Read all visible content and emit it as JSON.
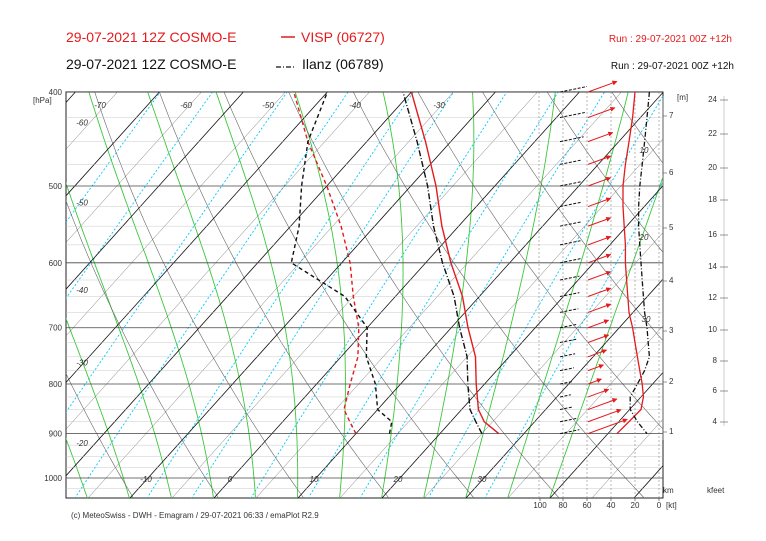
{
  "header": {
    "line1_left": "29-07-2021 12Z COSMO-E",
    "line1_station": "VISP (06727)",
    "line1_run": "Run : 29-07-2021 00Z +12h",
    "line2_left": "29-07-2021 12Z COSMO-E",
    "line2_station": "Ilanz (06789)",
    "line2_run": "Run : 29-07-2021 00Z +12h"
  },
  "footer": {
    "credit": "(c) MeteoSwiss - DWH - Emagram / 29-07-2021  06:33 / emaPlot R2.9"
  },
  "colors": {
    "visp": "#e41a1c",
    "ilanz": "#111111",
    "dry_adiabat": "#333333",
    "moist_adiabat": "#39c839",
    "mixing_ratio": "#00c8ff",
    "grid": "#888888"
  },
  "chart_data": {
    "type": "line",
    "diagram": "emagram",
    "y_axis": {
      "label": "[hPa]",
      "scale": "log-pressure",
      "range": [
        1050,
        400
      ],
      "ticks": [
        "400",
        "500",
        "600",
        "700",
        "800",
        "900",
        "1000"
      ]
    },
    "x_axis": {
      "label": "",
      "temperature_range_C": [
        -80,
        50
      ],
      "bottom_temperature_labels": [
        "-10",
        "0",
        "10",
        "20",
        "30"
      ],
      "upper_temperature_labels": [
        "-60",
        "-50",
        "-40",
        "-30",
        "-20"
      ],
      "upper_temperature_labels_top": [
        "-70",
        "-60",
        "-50",
        "-40",
        "-30"
      ]
    },
    "wind_scale": {
      "label": "[kt]",
      "ticks": [
        "100",
        "80",
        "60",
        "40",
        "20",
        "0"
      ]
    },
    "height_axis_m": {
      "label": "[m]",
      "ticks": [
        "1",
        "2",
        "3",
        "4",
        "5",
        "6",
        "7"
      ]
    },
    "height_axis_kfeet": {
      "label": "kfeet",
      "ticks": [
        "4",
        "6",
        "8",
        "10",
        "12",
        "14",
        "16",
        "18",
        "20",
        "22",
        "24"
      ]
    },
    "km_label": "km",
    "mixing_ratio_labels": [
      "10",
      "20",
      "30"
    ],
    "series": [
      {
        "name": "VISP (06727)",
        "role": "temperature",
        "points_T_p": [
          [
            27,
            900
          ],
          [
            24,
            875
          ],
          [
            22,
            850
          ],
          [
            19,
            800
          ],
          [
            16,
            750
          ],
          [
            12,
            700
          ],
          [
            8,
            650
          ],
          [
            3,
            600
          ],
          [
            -2,
            550
          ],
          [
            -7,
            500
          ],
          [
            -13,
            450
          ],
          [
            -20,
            400
          ]
        ]
      },
      {
        "name": "VISP (06727)",
        "role": "dewpoint",
        "points_T_p": [
          [
            10,
            900
          ],
          [
            8,
            875
          ],
          [
            6,
            850
          ],
          [
            4,
            800
          ],
          [
            2,
            750
          ],
          [
            -1,
            700
          ],
          [
            -5,
            650
          ],
          [
            -9,
            600
          ],
          [
            -14,
            550
          ],
          [
            -20,
            500
          ],
          [
            -27,
            450
          ],
          [
            -34,
            400
          ]
        ]
      },
      {
        "name": "Ilanz (06789)",
        "role": "temperature",
        "points_T_p": [
          [
            25,
            900
          ],
          [
            23,
            875
          ],
          [
            21,
            850
          ],
          [
            18,
            800
          ],
          [
            15,
            750
          ],
          [
            11,
            700
          ],
          [
            7,
            650
          ],
          [
            2,
            600
          ],
          [
            -3,
            550
          ],
          [
            -8,
            500
          ],
          [
            -14,
            450
          ],
          [
            -21,
            400
          ]
        ]
      },
      {
        "name": "Ilanz (06789)",
        "role": "dewpoint",
        "points_T_p": [
          [
            14,
            900
          ],
          [
            13,
            875
          ],
          [
            10,
            850
          ],
          [
            7,
            800
          ],
          [
            3,
            750
          ],
          [
            0,
            700
          ],
          [
            -6,
            650
          ],
          [
            -16,
            600
          ],
          [
            -19,
            550
          ],
          [
            -23,
            500
          ],
          [
            -27,
            450
          ],
          [
            -30,
            400
          ]
        ]
      }
    ],
    "wind_profile": {
      "VISP (06727)": {
        "levels_hPa": [
          400,
          425,
          450,
          475,
          500,
          525,
          550,
          575,
          600,
          625,
          650,
          675,
          700,
          725,
          750,
          775,
          800,
          825,
          850,
          875,
          900
        ],
        "speed_kt": [
          28,
          26,
          24,
          22,
          22,
          22,
          22,
          22,
          22,
          22,
          22,
          22,
          20,
          20,
          18,
          15,
          13,
          20,
          28,
          32,
          38
        ],
        "sounding_speed_kt": [
          20,
          22,
          25,
          28,
          30,
          30,
          29,
          28,
          28,
          27,
          26,
          25,
          22,
          20,
          18,
          16,
          14,
          13,
          15,
          25,
          35
        ]
      },
      "Ilanz (06789)": {
        "levels_hPa": [
          400,
          425,
          450,
          475,
          500,
          525,
          550,
          575,
          600,
          625,
          650,
          675,
          700,
          725,
          750,
          775,
          800,
          825,
          850,
          875,
          900
        ],
        "speed_kt": [
          25,
          23,
          22,
          20,
          20,
          20,
          20,
          19,
          19,
          18,
          18,
          17,
          16,
          15,
          14,
          13,
          12,
          10,
          12,
          15,
          18
        ],
        "sounding_speed_kt": [
          8,
          10,
          12,
          14,
          16,
          17,
          17,
          16,
          15,
          14,
          13,
          12,
          10,
          9,
          8,
          12,
          18,
          24,
          24,
          18,
          10
        ]
      }
    },
    "grid": true
  }
}
